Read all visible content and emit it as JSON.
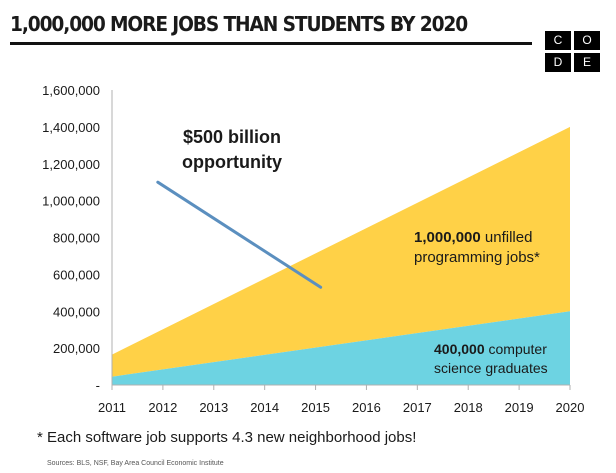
{
  "header": {
    "title": "1,000,000 MORE JOBS THAN STUDENTS BY 2020",
    "logo_letters": [
      "C",
      "O",
      "D",
      "E"
    ]
  },
  "chart_data": {
    "type": "area",
    "title": "1,000,000 MORE JOBS THAN STUDENTS BY 2020",
    "xlabel": "",
    "ylabel": "",
    "x": [
      2011,
      2020
    ],
    "x_ticks": [
      "2011",
      "2012",
      "2013",
      "2014",
      "2015",
      "2016",
      "2017",
      "2018",
      "2019",
      "2020"
    ],
    "y_ticks": [
      "-",
      "200,000",
      "400,000",
      "600,000",
      "800,000",
      "1,000,000",
      "1,200,000",
      "1,400,000",
      "1,600,000"
    ],
    "ylim": [
      0,
      1600000
    ],
    "grid": false,
    "stacked": true,
    "series": [
      {
        "name": "computer science graduates",
        "values": [
          45000,
          400000
        ],
        "color": "#6dd3e2"
      },
      {
        "name": "unfilled programming jobs",
        "values": [
          120000,
          1000000
        ],
        "color": "#ffd147"
      }
    ],
    "annotations": {
      "opportunity_line1": "$500 billion",
      "opportunity_line2": "opportunity",
      "jobs_bold": "1,000,000",
      "jobs_rest": " unfilled",
      "jobs_line2": "programming jobs*",
      "grads_bold": "400,000",
      "grads_rest": " computer",
      "grads_line2": "science graduates"
    },
    "pointer": {
      "x_from": 2011.9,
      "y_from": 1100000,
      "x_to": 2015.1,
      "y_to": 530000,
      "color": "#5b8fbf"
    }
  },
  "footer": {
    "footnote": "* Each software job supports 4.3 new neighborhood jobs!",
    "sources": "Sources: BLS, NSF, Bay Area Council Economic Institute"
  }
}
